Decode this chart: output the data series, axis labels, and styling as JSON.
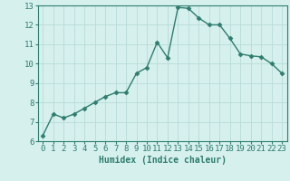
{
  "x": [
    0,
    1,
    2,
    3,
    4,
    5,
    6,
    7,
    8,
    9,
    10,
    11,
    12,
    13,
    14,
    15,
    16,
    17,
    18,
    19,
    20,
    21,
    22,
    23
  ],
  "y": [
    6.3,
    7.4,
    7.2,
    7.4,
    7.7,
    8.0,
    8.3,
    8.5,
    8.5,
    9.5,
    9.8,
    11.1,
    10.3,
    12.9,
    12.85,
    12.35,
    12.0,
    12.0,
    11.3,
    10.5,
    10.4,
    10.35,
    10.0,
    9.5
  ],
  "line_color": "#2e7d6e",
  "marker": "D",
  "marker_size": 2.5,
  "bg_color": "#d6f0ee",
  "grid_color": "#b8dcd8",
  "xlabel": "Humidex (Indice chaleur)",
  "xlim": [
    -0.5,
    23.5
  ],
  "ylim": [
    6,
    13
  ],
  "yticks": [
    6,
    7,
    8,
    9,
    10,
    11,
    12,
    13
  ],
  "xticks": [
    0,
    1,
    2,
    3,
    4,
    5,
    6,
    7,
    8,
    9,
    10,
    11,
    12,
    13,
    14,
    15,
    16,
    17,
    18,
    19,
    20,
    21,
    22,
    23
  ],
  "xlabel_fontsize": 7,
  "tick_fontsize": 6.5,
  "tick_color": "#2e7d6e",
  "axis_color": "#2e7d6e",
  "line_width": 1.0
}
